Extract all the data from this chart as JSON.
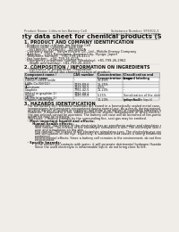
{
  "bg_color": "#f0ede8",
  "header_left": "Product Name: Lithium Ion Battery Cell",
  "header_right": "Substance Number: SFH302-3\nEstablished / Revision: Dec.7.2009",
  "title": "Safety data sheet for chemical products (SDS)",
  "s1_title": "1. PRODUCT AND COMPANY IDENTIFICATION",
  "s1_lines": [
    "· Product name: Lithium Ion Battery Cell",
    "· Product code: Cylindrical-type cell",
    "    SV18650U, SV18650U_, SV18650A",
    "· Company name:   Sanyo Electric Co., Ltd., Mobile Energy Company",
    "· Address:   2001 Kamezawa, Sumoto City, Hyogo, Japan",
    "· Telephone number:   +81-799-26-4111",
    "· Fax number:   +81-799-26-4125",
    "· Emergency telephone number (Weekday): +81-799-26-2962",
    "    (Night and holiday): +81-799-26-4101"
  ],
  "s2_title": "2. COMPOSITION / INFORMATION ON INGREDIENTS",
  "s2_sub1": "  · Substance or preparation: Preparation",
  "s2_sub2": "  · Information about the chemical nature of product:",
  "th": [
    "Component name /\nSeveral name",
    "CAS number",
    "Concentration /\nConcentration range",
    "Classification and\nhazard labeling"
  ],
  "tr": [
    [
      "Lithium cobalt oxide\n(LiMn-Co-Ni)(O2)",
      "-",
      "30-40%",
      "-"
    ],
    [
      "Iron",
      "7439-89-6",
      "15-25%",
      "-"
    ],
    [
      "Aluminum",
      "7429-90-5",
      "2-5%",
      "-"
    ],
    [
      "Graphite\n(Metal in graphite-1)\n(Al-Mn in graphite-1)",
      "7782-42-5\n7782-44-2",
      "10-20%",
      "-"
    ],
    [
      "Copper",
      "7440-50-8",
      "5-15%",
      "Sensitization of the skin\ngroup No.2"
    ],
    [
      "Organic electrolyte",
      "-",
      "10-20%",
      "Inflammable liquid"
    ]
  ],
  "s3_title": "3. HAZARDS IDENTIFICATION",
  "s3_p1": "   For the battery cell, chemical materials are stored in a hermetically sealed metal case, designed to withstand\n   temperatures and pressures encountered during normal use. As a result, during normal use, there is no\n   physical danger of ignition or explosion and there is no danger of hazardous materials leakage.",
  "s3_p2": "   However, if exposed to a fire, added mechanical shocks, decomposed, or when electric-chemical dry mass use,\n   the gas release cannot be operated. The battery cell case will be breached of fire-portions, hazardous\n   materials may be released.",
  "s3_p3": "   Moreover, if heated strongly by the surrounding fire, soot gas may be emitted.",
  "s3_sub1": "  · Most important hazard and effects:",
  "s3_human": "     Human health effects:",
  "s3_lines": [
    "        Inhalation: The release of the electrolyte has an anesthesia action and stimulates a respiratory tract.",
    "        Skin contact: The release of the electrolyte stimulates a skin. The electrolyte skin contact causes a",
    "        sore and stimulation on the skin.",
    "        Eye contact: The release of the electrolyte stimulates eyes. The electrolyte eye contact causes a sore",
    "        and stimulation on the eye. Especially, a substance that causes a strong inflammation of the eye is",
    "        contained.",
    "        Environmental effects: Since a battery cell remains in the environment, do not throw out it into the",
    "        environment."
  ],
  "s3_sub2": "  · Specific hazards:",
  "s3_spec": [
    "        If the electrolyte contacts with water, it will generate detrimental hydrogen fluoride.",
    "        Since the used electrolyte is inflammable liquid, do not bring close to fire."
  ]
}
